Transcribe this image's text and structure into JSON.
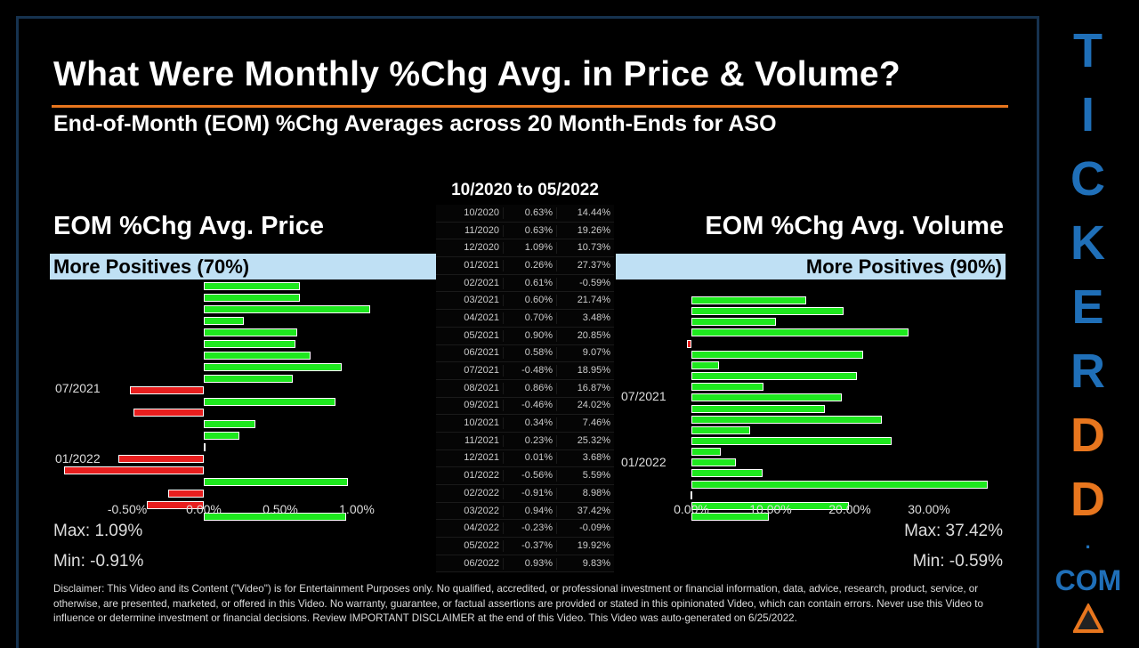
{
  "title": "What Were Monthly %Chg Avg. in Price & Volume?",
  "subtitle": "End-of-Month (EOM) %Chg Averages across 20 Month-Ends for ASO",
  "range": "10/2020 to 05/2022",
  "price": {
    "heading": "EOM %Chg Avg. Price",
    "band": "More Positives (70%)",
    "max": "Max: 1.09%",
    "min": "Min: -0.91%",
    "ticks": [
      "-0.50%",
      "0.00%",
      "0.50%",
      "1.00%"
    ],
    "tick_values": [
      -0.5,
      0,
      0.5,
      1.0
    ],
    "labels": [
      "07/2021",
      "01/2022"
    ]
  },
  "volume": {
    "heading": "EOM %Chg Avg. Volume",
    "band": "More Positives (90%)",
    "max": "Max: 37.42%",
    "min": "Min: -0.59%",
    "ticks": [
      "0.00%",
      "10.00%",
      "20.00%",
      "30.00%"
    ],
    "tick_values": [
      0,
      10,
      20,
      30
    ],
    "labels": [
      "07/2021",
      "01/2022"
    ]
  },
  "chart_data": [
    {
      "type": "bar",
      "orientation": "horizontal",
      "title": "EOM %Chg Avg. Price",
      "categories": [
        "10/2020",
        "11/2020",
        "12/2020",
        "01/2021",
        "02/2021",
        "03/2021",
        "04/2021",
        "05/2021",
        "06/2021",
        "07/2021",
        "08/2021",
        "09/2021",
        "10/2021",
        "11/2021",
        "12/2021",
        "01/2022",
        "02/2022",
        "03/2022",
        "04/2022",
        "05/2022",
        "06/2022"
      ],
      "values": [
        0.63,
        0.63,
        1.09,
        0.26,
        0.61,
        0.6,
        0.7,
        0.9,
        0.58,
        -0.48,
        0.86,
        -0.46,
        0.34,
        0.23,
        0.01,
        -0.56,
        -0.91,
        0.94,
        -0.23,
        -0.37,
        0.93
      ],
      "xlim": [
        -0.9,
        1.15
      ]
    },
    {
      "type": "bar",
      "orientation": "horizontal",
      "title": "EOM %Chg Avg. Volume",
      "categories": [
        "10/2020",
        "11/2020",
        "12/2020",
        "01/2021",
        "02/2021",
        "03/2021",
        "04/2021",
        "05/2021",
        "06/2021",
        "07/2021",
        "08/2021",
        "09/2021",
        "10/2021",
        "11/2021",
        "12/2021",
        "01/2022",
        "02/2022",
        "03/2022",
        "04/2022",
        "05/2022",
        "06/2022"
      ],
      "values": [
        14.44,
        19.26,
        10.73,
        27.37,
        -0.59,
        21.74,
        3.48,
        20.85,
        9.07,
        18.95,
        16.87,
        24.02,
        7.46,
        25.32,
        3.68,
        5.59,
        8.98,
        37.42,
        -0.09,
        19.92,
        9.83
      ],
      "xlim": [
        -1,
        40
      ]
    }
  ],
  "table": [
    [
      "10/2020",
      "0.63%",
      "14.44%"
    ],
    [
      "11/2020",
      "0.63%",
      "19.26%"
    ],
    [
      "12/2020",
      "1.09%",
      "10.73%"
    ],
    [
      "01/2021",
      "0.26%",
      "27.37%"
    ],
    [
      "02/2021",
      "0.61%",
      "-0.59%"
    ],
    [
      "03/2021",
      "0.60%",
      "21.74%"
    ],
    [
      "04/2021",
      "0.70%",
      "3.48%"
    ],
    [
      "05/2021",
      "0.90%",
      "20.85%"
    ],
    [
      "06/2021",
      "0.58%",
      "9.07%"
    ],
    [
      "07/2021",
      "-0.48%",
      "18.95%"
    ],
    [
      "08/2021",
      "0.86%",
      "16.87%"
    ],
    [
      "09/2021",
      "-0.46%",
      "24.02%"
    ],
    [
      "10/2021",
      "0.34%",
      "7.46%"
    ],
    [
      "11/2021",
      "0.23%",
      "25.32%"
    ],
    [
      "12/2021",
      "0.01%",
      "3.68%"
    ],
    [
      "01/2022",
      "-0.56%",
      "5.59%"
    ],
    [
      "02/2022",
      "-0.91%",
      "8.98%"
    ],
    [
      "03/2022",
      "0.94%",
      "37.42%"
    ],
    [
      "04/2022",
      "-0.23%",
      "-0.09%"
    ],
    [
      "05/2022",
      "-0.37%",
      "19.92%"
    ],
    [
      "06/2022",
      "0.93%",
      "9.83%"
    ]
  ],
  "disclaimer": "Disclaimer: This Video and its Content (\"Video\") is for Entertainment Purposes only. No qualified, accredited, or professional investment or financial information, data, advice, research, product, service, or otherwise, are presented, marketed, or offered in this Video. No warranty, guarantee, or factual assertions are provided or stated in this opinionated Video, which can contain errors. Never use this Video to influence or determine investment or financial decisions. Review IMPORTANT DISCLAIMER at the end of this Video. This Video was auto-generated on 6/25/2022.",
  "brand": {
    "letters": [
      "T",
      "I",
      "C",
      "K",
      "E",
      "R",
      "D",
      "D"
    ],
    "dot": ".",
    "com": "COM",
    "colors": {
      "blue": "#1f6fb8",
      "orange": "#e8761e"
    }
  }
}
